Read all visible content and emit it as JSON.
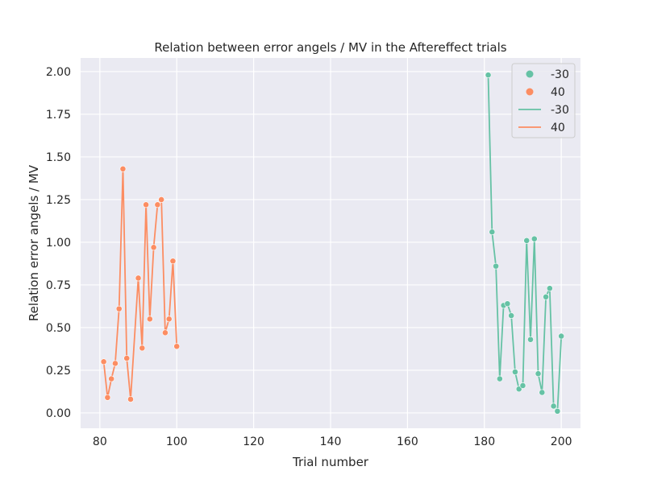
{
  "chart_data": {
    "type": "scatter",
    "title": "Relation between error angels / MV in the Aftereffect trials",
    "xlabel": "Trial number",
    "ylabel": "Relation error angels / MV",
    "xlim": [
      75,
      205
    ],
    "ylim": [
      -0.09,
      2.08
    ],
    "xticks": [
      80,
      100,
      120,
      140,
      160,
      180,
      200
    ],
    "xtick_labels": [
      "80",
      "100",
      "120",
      "140",
      "160",
      "180",
      "200"
    ],
    "yticks": [
      0.0,
      0.25,
      0.5,
      0.75,
      1.0,
      1.25,
      1.5,
      1.75,
      2.0
    ],
    "ytick_labels": [
      "0.00",
      "0.25",
      "0.50",
      "0.75",
      "1.00",
      "1.25",
      "1.50",
      "1.75",
      "2.00"
    ],
    "grid": true,
    "legend_position": "top-right",
    "legend": [
      {
        "label": "-30",
        "kind": "marker",
        "color": "#66c2a5"
      },
      {
        "label": "40",
        "kind": "marker",
        "color": "#fc8d62"
      },
      {
        "label": "-30",
        "kind": "line",
        "color": "#66c2a5"
      },
      {
        "label": "40",
        "kind": "line",
        "color": "#fc8d62"
      }
    ],
    "colors": {
      "background": "#eaeaf2",
      "grid": "#ffffff"
    },
    "series": [
      {
        "color": "#fc8d62",
        "x": [
          81,
          82,
          83,
          84,
          85,
          86,
          87,
          88,
          90,
          91,
          92,
          93,
          94,
          95,
          96,
          97,
          98,
          99,
          100
        ],
        "y": [
          0.3,
          0.09,
          0.2,
          0.29,
          0.61,
          1.43,
          0.32,
          0.08,
          0.79,
          0.38,
          1.22,
          0.55,
          0.97,
          1.22,
          1.25,
          0.47,
          0.55,
          0.89,
          0.39
        ]
      },
      {
        "color": "#66c2a5",
        "x": [
          181,
          182,
          183,
          184,
          185,
          186,
          187,
          188,
          189,
          190,
          191,
          192,
          193,
          194,
          195,
          196,
          197,
          198,
          199,
          200
        ],
        "y": [
          1.98,
          1.06,
          0.86,
          0.2,
          0.63,
          0.64,
          0.57,
          0.24,
          0.14,
          0.16,
          1.01,
          0.43,
          1.02,
          0.23,
          0.12,
          0.68,
          0.73,
          0.04,
          0.01,
          0.45
        ]
      }
    ]
  }
}
